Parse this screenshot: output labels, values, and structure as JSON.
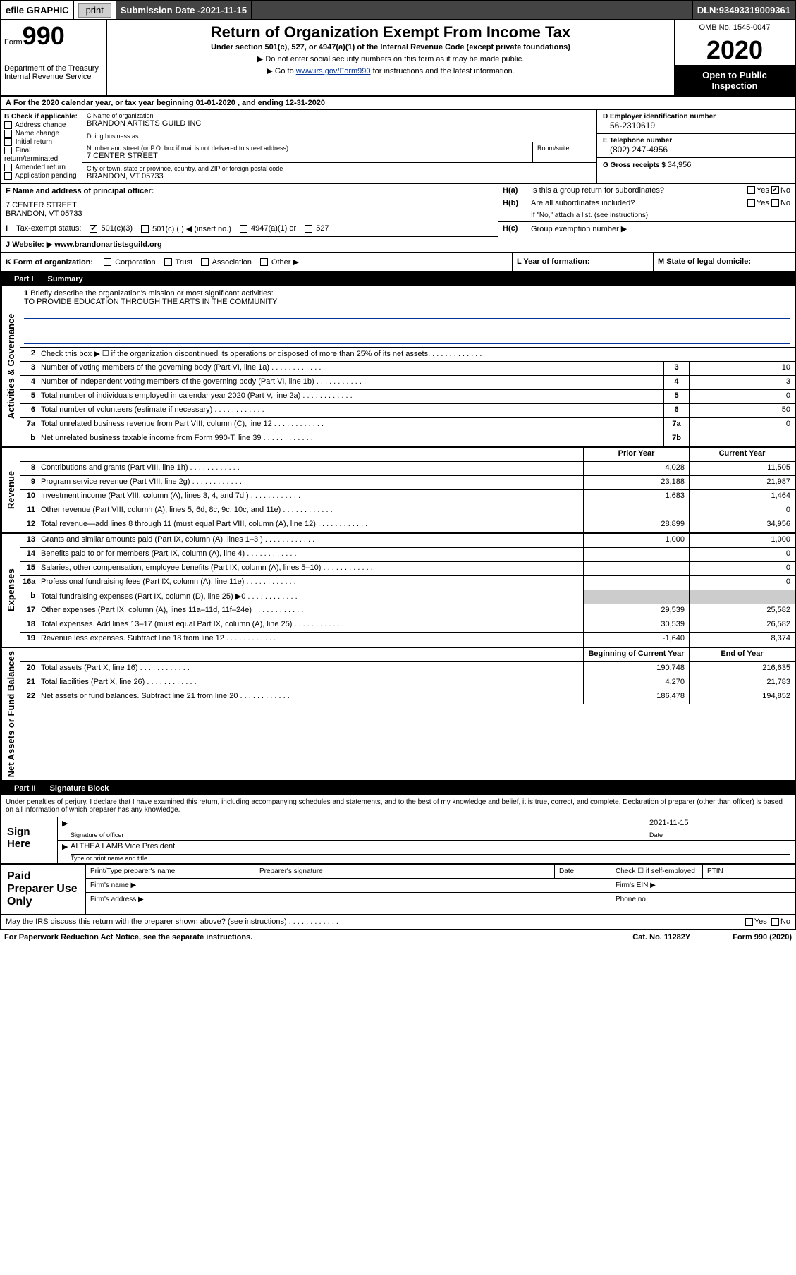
{
  "top": {
    "efile": "efile GRAPHIC",
    "print": "print",
    "submission_label": "Submission Date - ",
    "submission_date": "2021-11-15",
    "dln_label": "DLN: ",
    "dln": "93493319009361"
  },
  "header": {
    "form_word": "Form",
    "form_no": "990",
    "dept": "Department of the Treasury\nInternal Revenue Service",
    "title": "Return of Organization Exempt From Income Tax",
    "sub": "Under section 501(c), 527, or 4947(a)(1) of the Internal Revenue Code (except private foundations)",
    "note1": "▶ Do not enter social security numbers on this form as it may be made public.",
    "note2_pre": "▶ Go to ",
    "note2_link": "www.irs.gov/Form990",
    "note2_post": " for instructions and the latest information.",
    "omb": "OMB No. 1545-0047",
    "year": "2020",
    "inspect": "Open to Public Inspection"
  },
  "a": {
    "tax_year": "For the 2020 calendar year, or tax year beginning 01-01-2020   , and ending 12-31-2020",
    "b_label": "B Check if applicable:",
    "b_items": [
      "Address change",
      "Name change",
      "Initial return",
      "Final return/terminated",
      "Amended return",
      "Application pending"
    ],
    "c_name_label": "C Name of organization",
    "c_name": "BRANDON ARTISTS GUILD INC",
    "dba_label": "Doing business as",
    "dba": "",
    "street_label": "Number and street (or P.O. box if mail is not delivered to street address)",
    "street": "7 CENTER STREET",
    "room_label": "Room/suite",
    "city_label": "City or town, state or province, country, and ZIP or foreign postal code",
    "city": "BRANDON, VT  05733",
    "d_label": "D Employer identification number",
    "d_val": "56-2310619",
    "e_label": "E Telephone number",
    "e_val": "(802) 247-4956",
    "g_label": "G Gross receipts $ ",
    "g_val": "34,956",
    "f_label": "F  Name and address of principal officer:",
    "f_val": "7 CENTER STREET\nBRANDON, VT  05733",
    "ha_label": "H(a)",
    "ha_text": "Is this a group return for subordinates?",
    "hb_label": "H(b)",
    "hb_text": "Are all subordinates included?",
    "hb_note": "If \"No,\" attach a list. (see instructions)",
    "hc_label": "H(c)",
    "hc_text": "Group exemption number ▶",
    "i_label": "I",
    "i_text": "Tax-exempt status:",
    "i_501c3": "501(c)(3)",
    "i_501c": "501(c) (  ) ◀ (insert no.)",
    "i_4947": "4947(a)(1) or",
    "i_527": "527",
    "j_label": "J",
    "j_text": "Website: ▶",
    "j_val": "www.brandonartistsguild.org",
    "k_label": "K Form of organization:",
    "k_opts": [
      "Corporation",
      "Trust",
      "Association",
      "Other ▶"
    ],
    "l_label": "L Year of formation:",
    "m_label": "M State of legal domicile:",
    "yes": "Yes",
    "no": "No"
  },
  "part1": {
    "part_no": "Part I",
    "title": "Summary",
    "sections": [
      {
        "label": "Activities & Governance",
        "rows": [
          {
            "no": "1",
            "desc": "Briefly describe the organization's mission or most significant activities:",
            "mission": "TO PROVIDE EDUCATION THROUGH THE ARTS IN THE COMMUNITY"
          },
          {
            "no": "2",
            "desc": "Check this box ▶ ☐  if the organization discontinued its operations or disposed of more than 25% of its net assets."
          },
          {
            "no": "3",
            "desc": "Number of voting members of the governing body (Part VI, line 1a)",
            "box": "3",
            "v2": "10"
          },
          {
            "no": "4",
            "desc": "Number of independent voting members of the governing body (Part VI, line 1b)",
            "box": "4",
            "v2": "3"
          },
          {
            "no": "5",
            "desc": "Total number of individuals employed in calendar year 2020 (Part V, line 2a)",
            "box": "5",
            "v2": "0"
          },
          {
            "no": "6",
            "desc": "Total number of volunteers (estimate if necessary)",
            "box": "6",
            "v2": "50"
          },
          {
            "no": "7a",
            "desc": "Total unrelated business revenue from Part VIII, column (C), line 12",
            "box": "7a",
            "v2": "0"
          },
          {
            "no": "b",
            "desc": "Net unrelated business taxable income from Form 990-T, line 39",
            "box": "7b",
            "v2": ""
          }
        ]
      },
      {
        "label": "Revenue",
        "hdr1": "Prior Year",
        "hdr2": "Current Year",
        "rows": [
          {
            "no": "8",
            "desc": "Contributions and grants (Part VIII, line 1h)",
            "v1": "4,028",
            "v2": "11,505"
          },
          {
            "no": "9",
            "desc": "Program service revenue (Part VIII, line 2g)",
            "v1": "23,188",
            "v2": "21,987"
          },
          {
            "no": "10",
            "desc": "Investment income (Part VIII, column (A), lines 3, 4, and 7d )",
            "v1": "1,683",
            "v2": "1,464"
          },
          {
            "no": "11",
            "desc": "Other revenue (Part VIII, column (A), lines 5, 6d, 8c, 9c, 10c, and 11e)",
            "v1": "",
            "v2": "0"
          },
          {
            "no": "12",
            "desc": "Total revenue—add lines 8 through 11 (must equal Part VIII, column (A), line 12)",
            "v1": "28,899",
            "v2": "34,956"
          }
        ]
      },
      {
        "label": "Expenses",
        "rows": [
          {
            "no": "13",
            "desc": "Grants and similar amounts paid (Part IX, column (A), lines 1–3 )",
            "v1": "1,000",
            "v2": "1,000"
          },
          {
            "no": "14",
            "desc": "Benefits paid to or for members (Part IX, column (A), line 4)",
            "v1": "",
            "v2": "0"
          },
          {
            "no": "15",
            "desc": "Salaries, other compensation, employee benefits (Part IX, column (A), lines 5–10)",
            "v1": "",
            "v2": "0"
          },
          {
            "no": "16a",
            "desc": "Professional fundraising fees (Part IX, column (A), line 11e)",
            "v1": "",
            "v2": "0"
          },
          {
            "no": "b",
            "desc": "Total fundraising expenses (Part IX, column (D), line 25) ▶0",
            "shaded": true
          },
          {
            "no": "17",
            "desc": "Other expenses (Part IX, column (A), lines 11a–11d, 11f–24e)",
            "v1": "29,539",
            "v2": "25,582"
          },
          {
            "no": "18",
            "desc": "Total expenses. Add lines 13–17 (must equal Part IX, column (A), line 25)",
            "v1": "30,539",
            "v2": "26,582"
          },
          {
            "no": "19",
            "desc": "Revenue less expenses. Subtract line 18 from line 12",
            "v1": "-1,640",
            "v2": "8,374"
          }
        ]
      },
      {
        "label": "Net Assets or Fund Balances",
        "hdr1": "Beginning of Current Year",
        "hdr2": "End of Year",
        "rows": [
          {
            "no": "20",
            "desc": "Total assets (Part X, line 16)",
            "v1": "190,748",
            "v2": "216,635"
          },
          {
            "no": "21",
            "desc": "Total liabilities (Part X, line 26)",
            "v1": "4,270",
            "v2": "21,783"
          },
          {
            "no": "22",
            "desc": "Net assets or fund balances. Subtract line 21 from line 20",
            "v1": "186,478",
            "v2": "194,852"
          }
        ]
      }
    ]
  },
  "part2": {
    "part_no": "Part II",
    "title": "Signature Block",
    "decl": "Under penalties of perjury, I declare that I have examined this return, including accompanying schedules and statements, and to the best of my knowledge and belief, it is true, correct, and complete. Declaration of preparer (other than officer) is based on all information of which preparer has any knowledge.",
    "sign_here": "Sign Here",
    "sig_officer": "Signature of officer",
    "sig_date_label": "Date",
    "sig_date": "2021-11-15",
    "name_title": "ALTHEA LAMB  Vice President",
    "name_title_label": "Type or print name and title",
    "paid": "Paid Preparer Use Only",
    "prep_name": "Print/Type preparer's name",
    "prep_sig": "Preparer's signature",
    "prep_date": "Date",
    "prep_check": "Check ☐ if self-employed",
    "ptin": "PTIN",
    "firm_name": "Firm's name   ▶",
    "firm_ein": "Firm's EIN ▶",
    "firm_addr": "Firm's address ▶",
    "phone": "Phone no.",
    "discuss": "May the IRS discuss this return with the preparer shown above? (see instructions)"
  },
  "footer": {
    "paperwork": "For Paperwork Reduction Act Notice, see the separate instructions.",
    "cat": "Cat. No. 11282Y",
    "form": "Form 990 (2020)"
  },
  "colors": {
    "link": "#003399",
    "header_dark": "#444444"
  }
}
